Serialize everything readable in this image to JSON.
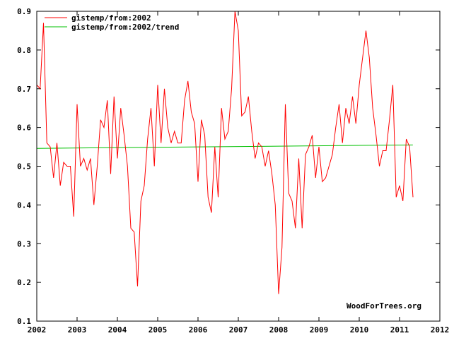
{
  "chart_data": {
    "type": "line",
    "title": "",
    "xlabel": "",
    "ylabel": "",
    "xlim": [
      2002,
      2012
    ],
    "ylim": [
      0.1,
      0.9
    ],
    "xticks": [
      "2002",
      "2003",
      "2004",
      "2005",
      "2006",
      "2007",
      "2008",
      "2009",
      "2010",
      "2011",
      "2012"
    ],
    "yticks": [
      "0.1",
      "0.2",
      "0.3",
      "0.4",
      "0.5",
      "0.6",
      "0.7",
      "0.8",
      "0.9"
    ],
    "grid": false,
    "legend_position": "top-left",
    "watermark": "WoodForTrees.org",
    "series": [
      {
        "name": "gistemp/from:2002",
        "color": "#ff0000",
        "start": 2002.0,
        "step": 0.083333,
        "values": [
          0.71,
          0.7,
          0.87,
          0.56,
          0.55,
          0.47,
          0.56,
          0.45,
          0.51,
          0.5,
          0.5,
          0.37,
          0.66,
          0.5,
          0.52,
          0.49,
          0.52,
          0.4,
          0.5,
          0.62,
          0.6,
          0.67,
          0.48,
          0.68,
          0.52,
          0.65,
          0.58,
          0.5,
          0.34,
          0.33,
          0.19,
          0.41,
          0.45,
          0.57,
          0.65,
          0.5,
          0.71,
          0.56,
          0.7,
          0.6,
          0.56,
          0.59,
          0.56,
          0.56,
          0.67,
          0.72,
          0.64,
          0.61,
          0.46,
          0.62,
          0.58,
          0.42,
          0.38,
          0.55,
          0.42,
          0.65,
          0.57,
          0.59,
          0.7,
          0.9,
          0.85,
          0.63,
          0.64,
          0.68,
          0.59,
          0.52,
          0.56,
          0.55,
          0.5,
          0.54,
          0.48,
          0.4,
          0.17,
          0.29,
          0.66,
          0.43,
          0.41,
          0.34,
          0.52,
          0.34,
          0.53,
          0.55,
          0.58,
          0.47,
          0.55,
          0.46,
          0.47,
          0.5,
          0.53,
          0.6,
          0.66,
          0.56,
          0.65,
          0.61,
          0.68,
          0.61,
          0.71,
          0.78,
          0.85,
          0.78,
          0.65,
          0.58,
          0.5,
          0.54,
          0.54,
          0.62,
          0.71,
          0.42,
          0.45,
          0.41,
          0.57,
          0.55,
          0.42
        ]
      },
      {
        "name": "gistemp/from:2002/trend",
        "color": "#00c000",
        "x": [
          2002.0,
          2011.33
        ],
        "values": [
          0.546,
          0.555
        ]
      }
    ]
  }
}
